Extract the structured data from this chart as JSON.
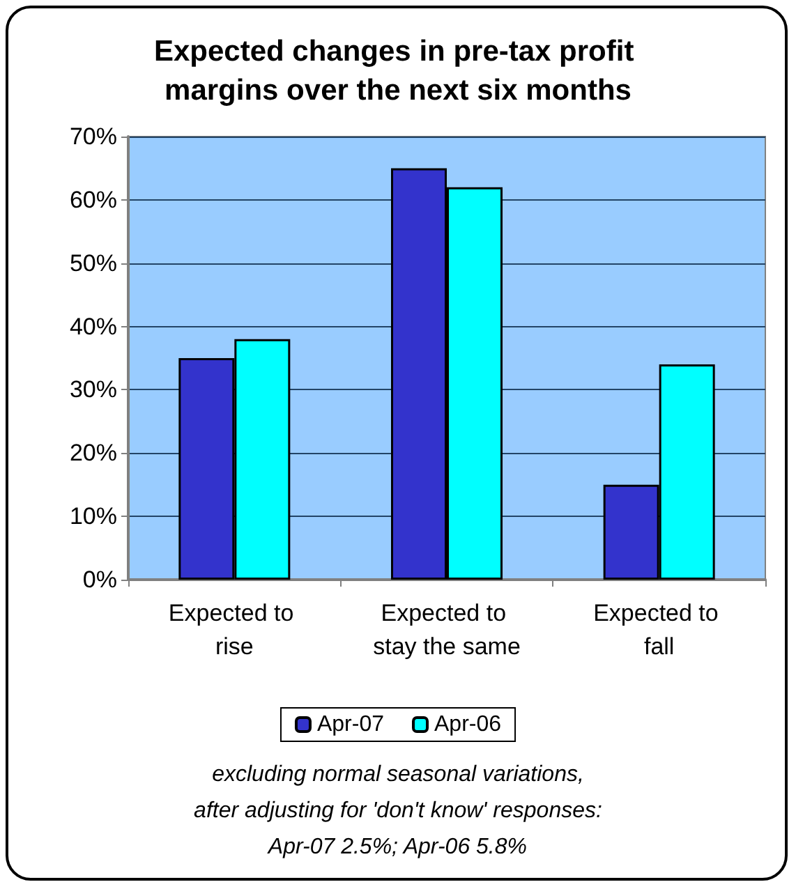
{
  "chart_data": {
    "type": "bar",
    "title": "Expected changes in pre-tax profit margins over the next six months",
    "categories": [
      "Expected to rise",
      "Expected to stay the same",
      "Expected to fall"
    ],
    "series": [
      {
        "name": "Apr-07",
        "color": "#3333cc",
        "values": [
          35,
          65,
          15
        ]
      },
      {
        "name": "Apr-06",
        "color": "#00ffff",
        "values": [
          38,
          62,
          34
        ]
      }
    ],
    "ylim": [
      0,
      70
    ],
    "yticks": [
      {
        "value": 0,
        "label": "0%"
      },
      {
        "value": 10,
        "label": "10%"
      },
      {
        "value": 20,
        "label": "20%"
      },
      {
        "value": 30,
        "label": "30%"
      },
      {
        "value": 40,
        "label": "40%"
      },
      {
        "value": 50,
        "label": "50%"
      },
      {
        "value": 60,
        "label": "60%"
      },
      {
        "value": 70,
        "label": "70%"
      }
    ],
    "grid": "y",
    "legend": "bottom",
    "annotations": [
      "excluding normal seasonal variations,",
      "after adjusting for 'don't know' responses:",
      "Apr-07 2.5%; Apr-06 5.8%"
    ]
  }
}
